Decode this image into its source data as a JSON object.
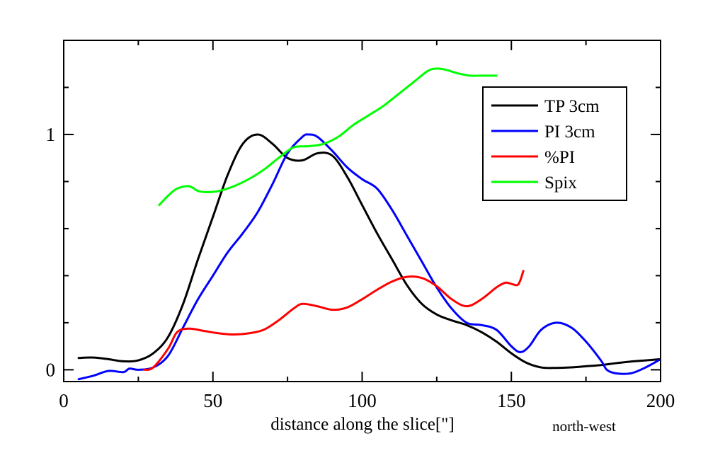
{
  "chart_data": {
    "type": "line",
    "title": "",
    "xlabel": "distance along the slice[\"]",
    "ylabel": "",
    "annotation": "north-west",
    "xlim": [
      0,
      200
    ],
    "ylim": [
      -0.05,
      1.4
    ],
    "x_ticks": [
      {
        "value": 0,
        "label": "0"
      },
      {
        "value": 50,
        "label": "50"
      },
      {
        "value": 100,
        "label": "100"
      },
      {
        "value": 150,
        "label": "150"
      },
      {
        "value": 200,
        "label": "200"
      }
    ],
    "x_minor_ticks": [
      25,
      75,
      125,
      175
    ],
    "y_ticks": [
      {
        "value": 0,
        "label": "0"
      },
      {
        "value": 1,
        "label": "1"
      }
    ],
    "y_minor_ticks": [
      0.2,
      0.4,
      0.6,
      0.8,
      1.2
    ],
    "grid": false,
    "legend_position": "top-right",
    "series": [
      {
        "name": "TP 3cm",
        "color": "#000000",
        "points": [
          [
            5,
            0.05
          ],
          [
            10,
            0.052
          ],
          [
            15,
            0.045
          ],
          [
            20,
            0.036
          ],
          [
            25,
            0.04
          ],
          [
            30,
            0.07
          ],
          [
            35,
            0.14
          ],
          [
            40,
            0.28
          ],
          [
            45,
            0.47
          ],
          [
            50,
            0.65
          ],
          [
            55,
            0.83
          ],
          [
            60,
            0.96
          ],
          [
            65,
            1.0
          ],
          [
            70,
            0.96
          ],
          [
            75,
            0.9
          ],
          [
            80,
            0.89
          ],
          [
            85,
            0.92
          ],
          [
            90,
            0.91
          ],
          [
            95,
            0.82
          ],
          [
            100,
            0.7
          ],
          [
            105,
            0.58
          ],
          [
            110,
            0.47
          ],
          [
            115,
            0.36
          ],
          [
            120,
            0.28
          ],
          [
            125,
            0.235
          ],
          [
            130,
            0.21
          ],
          [
            135,
            0.19
          ],
          [
            140,
            0.16
          ],
          [
            145,
            0.12
          ],
          [
            150,
            0.07
          ],
          [
            155,
            0.03
          ],
          [
            160,
            0.01
          ],
          [
            165,
            0.008
          ],
          [
            170,
            0.01
          ],
          [
            175,
            0.015
          ],
          [
            180,
            0.02
          ],
          [
            185,
            0.028
          ],
          [
            190,
            0.035
          ],
          [
            195,
            0.04
          ],
          [
            200,
            0.045
          ]
        ]
      },
      {
        "name": "PI 3cm",
        "color": "#0000ff",
        "points": [
          [
            5,
            -0.04
          ],
          [
            10,
            -0.025
          ],
          [
            15,
            -0.005
          ],
          [
            20,
            -0.01
          ],
          [
            22,
            0.005
          ],
          [
            25,
            0.0
          ],
          [
            30,
            0.01
          ],
          [
            35,
            0.06
          ],
          [
            40,
            0.18
          ],
          [
            45,
            0.3
          ],
          [
            50,
            0.4
          ],
          [
            55,
            0.5
          ],
          [
            60,
            0.58
          ],
          [
            65,
            0.67
          ],
          [
            70,
            0.79
          ],
          [
            75,
            0.92
          ],
          [
            80,
            0.99
          ],
          [
            82,
            1.0
          ],
          [
            85,
            0.99
          ],
          [
            90,
            0.93
          ],
          [
            95,
            0.86
          ],
          [
            100,
            0.81
          ],
          [
            105,
            0.77
          ],
          [
            110,
            0.68
          ],
          [
            115,
            0.57
          ],
          [
            120,
            0.46
          ],
          [
            125,
            0.35
          ],
          [
            130,
            0.26
          ],
          [
            135,
            0.2
          ],
          [
            140,
            0.19
          ],
          [
            145,
            0.17
          ],
          [
            150,
            0.1
          ],
          [
            153,
            0.075
          ],
          [
            156,
            0.1
          ],
          [
            160,
            0.17
          ],
          [
            165,
            0.2
          ],
          [
            170,
            0.18
          ],
          [
            175,
            0.12
          ],
          [
            180,
            0.04
          ],
          [
            182,
            0.0
          ],
          [
            185,
            -0.015
          ],
          [
            190,
            -0.015
          ],
          [
            195,
            0.01
          ],
          [
            200,
            0.045
          ]
        ]
      },
      {
        "name": "%PI",
        "color": "#ff0000",
        "points": [
          [
            27,
            0.0
          ],
          [
            30,
            0.01
          ],
          [
            35,
            0.09
          ],
          [
            38,
            0.16
          ],
          [
            42,
            0.175
          ],
          [
            47,
            0.165
          ],
          [
            52,
            0.155
          ],
          [
            57,
            0.15
          ],
          [
            62,
            0.155
          ],
          [
            67,
            0.17
          ],
          [
            72,
            0.21
          ],
          [
            77,
            0.26
          ],
          [
            80,
            0.28
          ],
          [
            85,
            0.27
          ],
          [
            90,
            0.255
          ],
          [
            95,
            0.265
          ],
          [
            100,
            0.3
          ],
          [
            105,
            0.34
          ],
          [
            110,
            0.375
          ],
          [
            115,
            0.395
          ],
          [
            120,
            0.39
          ],
          [
            125,
            0.355
          ],
          [
            130,
            0.3
          ],
          [
            135,
            0.27
          ],
          [
            140,
            0.3
          ],
          [
            145,
            0.35
          ],
          [
            148,
            0.37
          ],
          [
            150,
            0.365
          ],
          [
            152,
            0.36
          ],
          [
            153,
            0.38
          ],
          [
            154,
            0.42
          ]
        ]
      },
      {
        "name": "Spix",
        "color": "#00ff00",
        "points": [
          [
            32,
            0.7
          ],
          [
            35,
            0.74
          ],
          [
            38,
            0.77
          ],
          [
            42,
            0.78
          ],
          [
            45,
            0.76
          ],
          [
            48,
            0.755
          ],
          [
            52,
            0.76
          ],
          [
            57,
            0.78
          ],
          [
            62,
            0.81
          ],
          [
            67,
            0.85
          ],
          [
            72,
            0.9
          ],
          [
            77,
            0.945
          ],
          [
            82,
            0.95
          ],
          [
            87,
            0.96
          ],
          [
            92,
            0.99
          ],
          [
            97,
            1.04
          ],
          [
            102,
            1.08
          ],
          [
            107,
            1.12
          ],
          [
            112,
            1.17
          ],
          [
            117,
            1.22
          ],
          [
            122,
            1.27
          ],
          [
            125,
            1.28
          ],
          [
            128,
            1.275
          ],
          [
            132,
            1.26
          ],
          [
            136,
            1.25
          ],
          [
            140,
            1.25
          ],
          [
            145,
            1.25
          ]
        ]
      }
    ]
  }
}
